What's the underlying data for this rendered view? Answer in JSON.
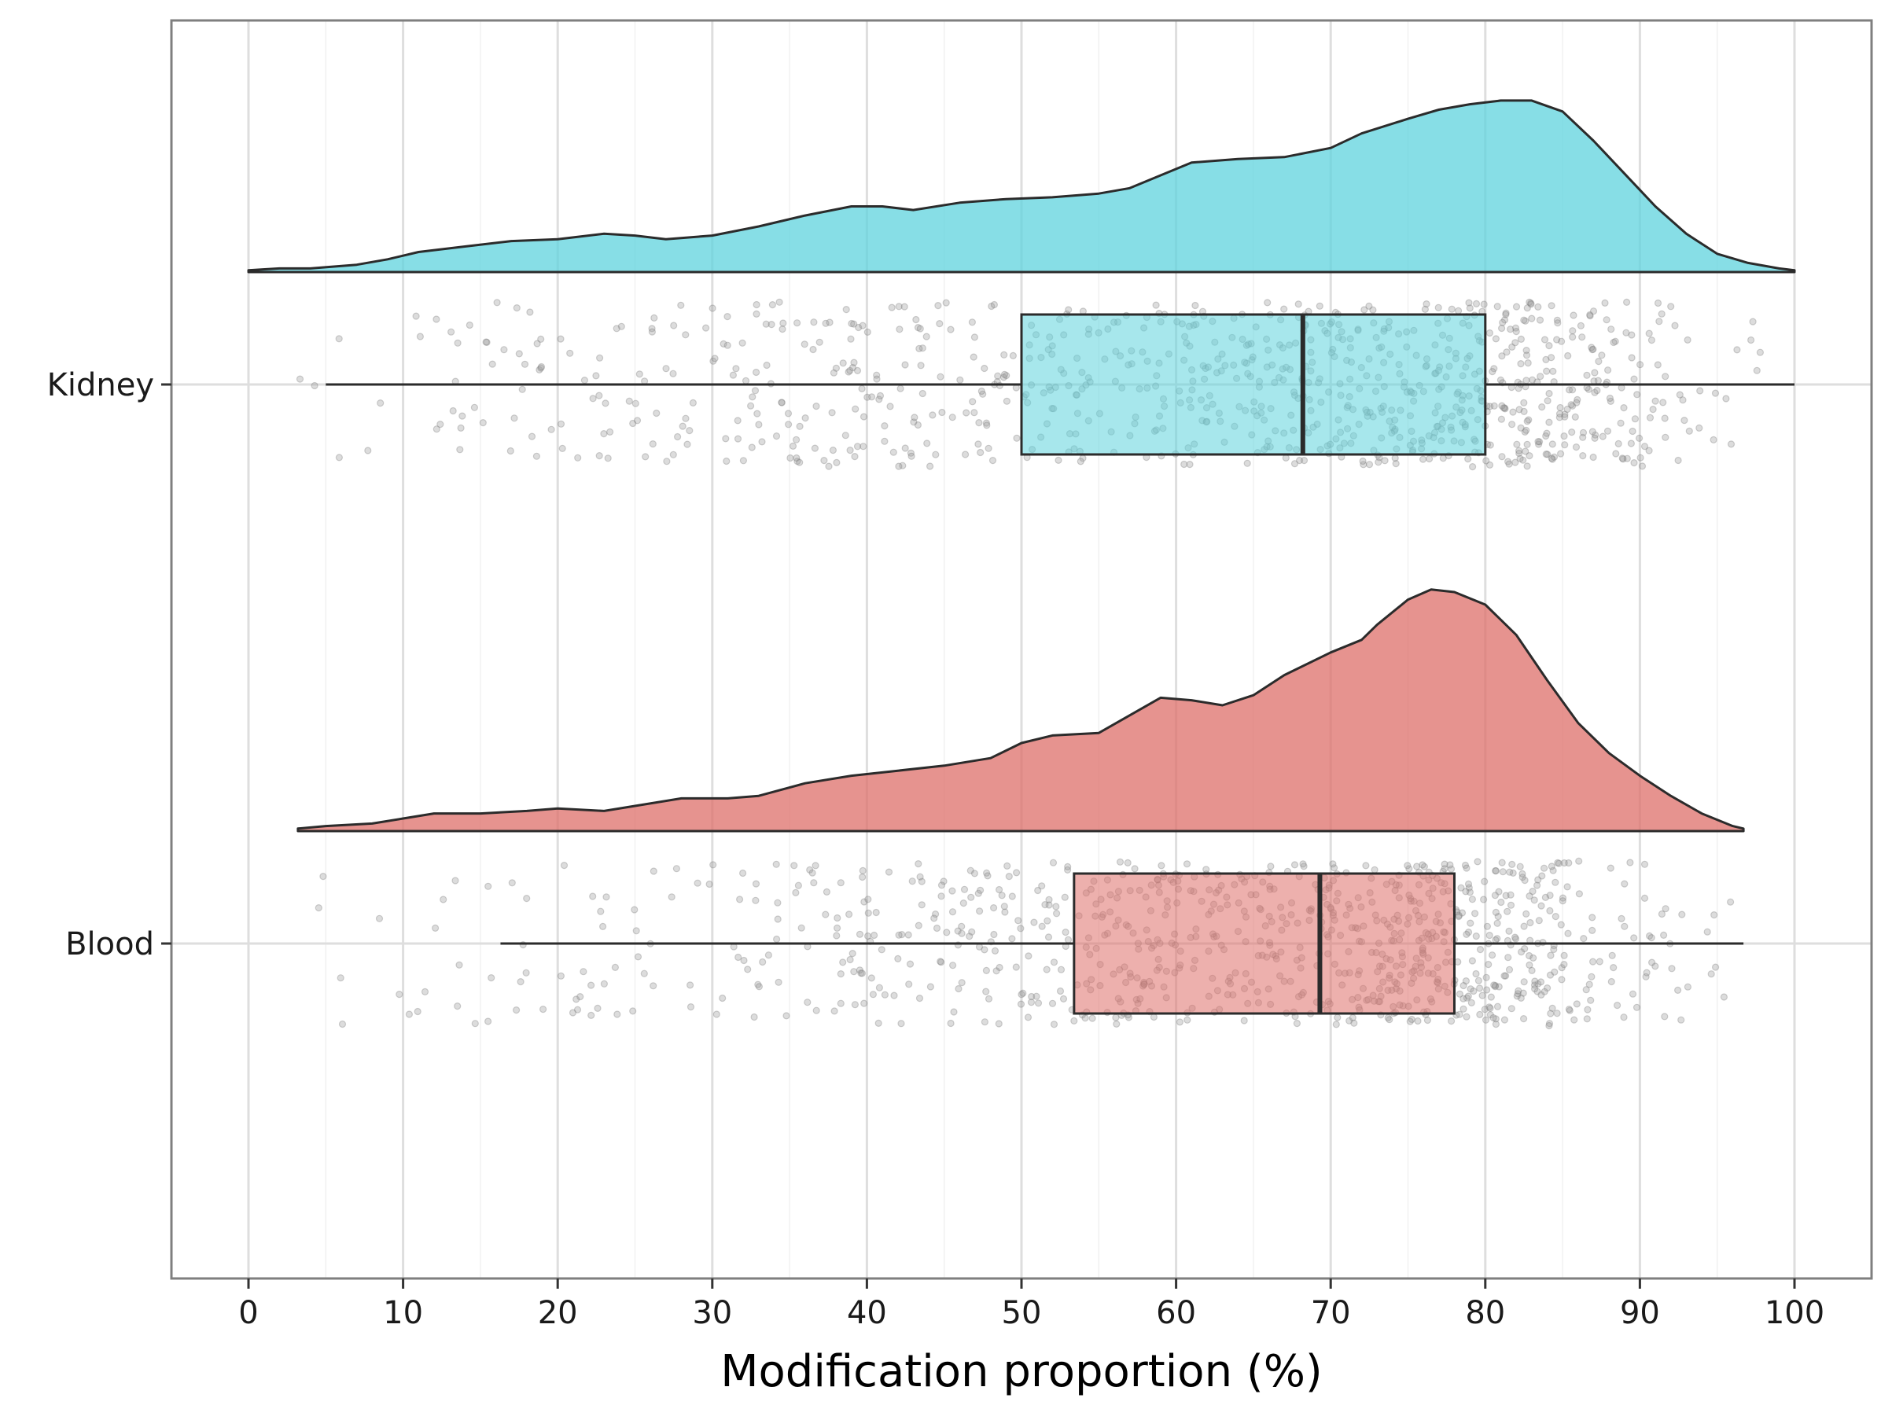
{
  "chart_data": {
    "type": "raincloud",
    "xlabel": "Modification proportion (%)",
    "ylabel": "",
    "xlim": [
      -5,
      105
    ],
    "x_ticks": [
      0,
      10,
      20,
      30,
      40,
      50,
      60,
      70,
      80,
      90,
      100
    ],
    "x_tick_labels": [
      "0",
      "10",
      "20",
      "30",
      "40",
      "50",
      "60",
      "70",
      "80",
      "90",
      "100"
    ],
    "grid": true,
    "legend": "none",
    "series": [
      {
        "name": "Kidney",
        "color": "#5fd3dd",
        "box": {
          "whisker_low": 5,
          "q1": 50,
          "median": 68.2,
          "q3": 80,
          "whisker_high": 100
        },
        "density_range": [
          0,
          100
        ],
        "density": [
          [
            0,
            0.01
          ],
          [
            2,
            0.02
          ],
          [
            4,
            0.02
          ],
          [
            7,
            0.04
          ],
          [
            9,
            0.07
          ],
          [
            11,
            0.11
          ],
          [
            14,
            0.14
          ],
          [
            17,
            0.17
          ],
          [
            20,
            0.18
          ],
          [
            23,
            0.21
          ],
          [
            25,
            0.2
          ],
          [
            27,
            0.18
          ],
          [
            30,
            0.2
          ],
          [
            33,
            0.25
          ],
          [
            36,
            0.31
          ],
          [
            39,
            0.36
          ],
          [
            41,
            0.36
          ],
          [
            43,
            0.34
          ],
          [
            46,
            0.38
          ],
          [
            49,
            0.4
          ],
          [
            52,
            0.41
          ],
          [
            55,
            0.43
          ],
          [
            57,
            0.46
          ],
          [
            59,
            0.53
          ],
          [
            61,
            0.6
          ],
          [
            64,
            0.62
          ],
          [
            67,
            0.63
          ],
          [
            70,
            0.68
          ],
          [
            72,
            0.76
          ],
          [
            75,
            0.84
          ],
          [
            77,
            0.89
          ],
          [
            79,
            0.92
          ],
          [
            81,
            0.94
          ],
          [
            83,
            0.94
          ],
          [
            85,
            0.88
          ],
          [
            87,
            0.72
          ],
          [
            89,
            0.54
          ],
          [
            91,
            0.36
          ],
          [
            93,
            0.21
          ],
          [
            95,
            0.1
          ],
          [
            97,
            0.05
          ],
          [
            99,
            0.02
          ],
          [
            100,
            0.01
          ]
        ]
      },
      {
        "name": "Blood",
        "color": "#de6f6a",
        "box": {
          "whisker_low": 16.3,
          "q1": 53.4,
          "median": 69.3,
          "q3": 78,
          "whisker_high": 96.7
        },
        "density_range": [
          3.2,
          96.7
        ],
        "density": [
          [
            3.2,
            0.01
          ],
          [
            5,
            0.02
          ],
          [
            8,
            0.03
          ],
          [
            10,
            0.05
          ],
          [
            12,
            0.07
          ],
          [
            15,
            0.07
          ],
          [
            18,
            0.08
          ],
          [
            20,
            0.09
          ],
          [
            23,
            0.08
          ],
          [
            25,
            0.1
          ],
          [
            28,
            0.13
          ],
          [
            31,
            0.13
          ],
          [
            33,
            0.14
          ],
          [
            36,
            0.19
          ],
          [
            39,
            0.22
          ],
          [
            42,
            0.24
          ],
          [
            45,
            0.26
          ],
          [
            48,
            0.29
          ],
          [
            50,
            0.35
          ],
          [
            52,
            0.38
          ],
          [
            55,
            0.39
          ],
          [
            57,
            0.46
          ],
          [
            59,
            0.53
          ],
          [
            61,
            0.52
          ],
          [
            63,
            0.5
          ],
          [
            65,
            0.54
          ],
          [
            67,
            0.62
          ],
          [
            70,
            0.71
          ],
          [
            72,
            0.76
          ],
          [
            73,
            0.82
          ],
          [
            75,
            0.92
          ],
          [
            76.5,
            0.96
          ],
          [
            78,
            0.95
          ],
          [
            80,
            0.9
          ],
          [
            82,
            0.78
          ],
          [
            84,
            0.6
          ],
          [
            86,
            0.43
          ],
          [
            88,
            0.31
          ],
          [
            90,
            0.22
          ],
          [
            92,
            0.14
          ],
          [
            94,
            0.07
          ],
          [
            96,
            0.02
          ],
          [
            96.7,
            0.01
          ]
        ]
      }
    ]
  }
}
